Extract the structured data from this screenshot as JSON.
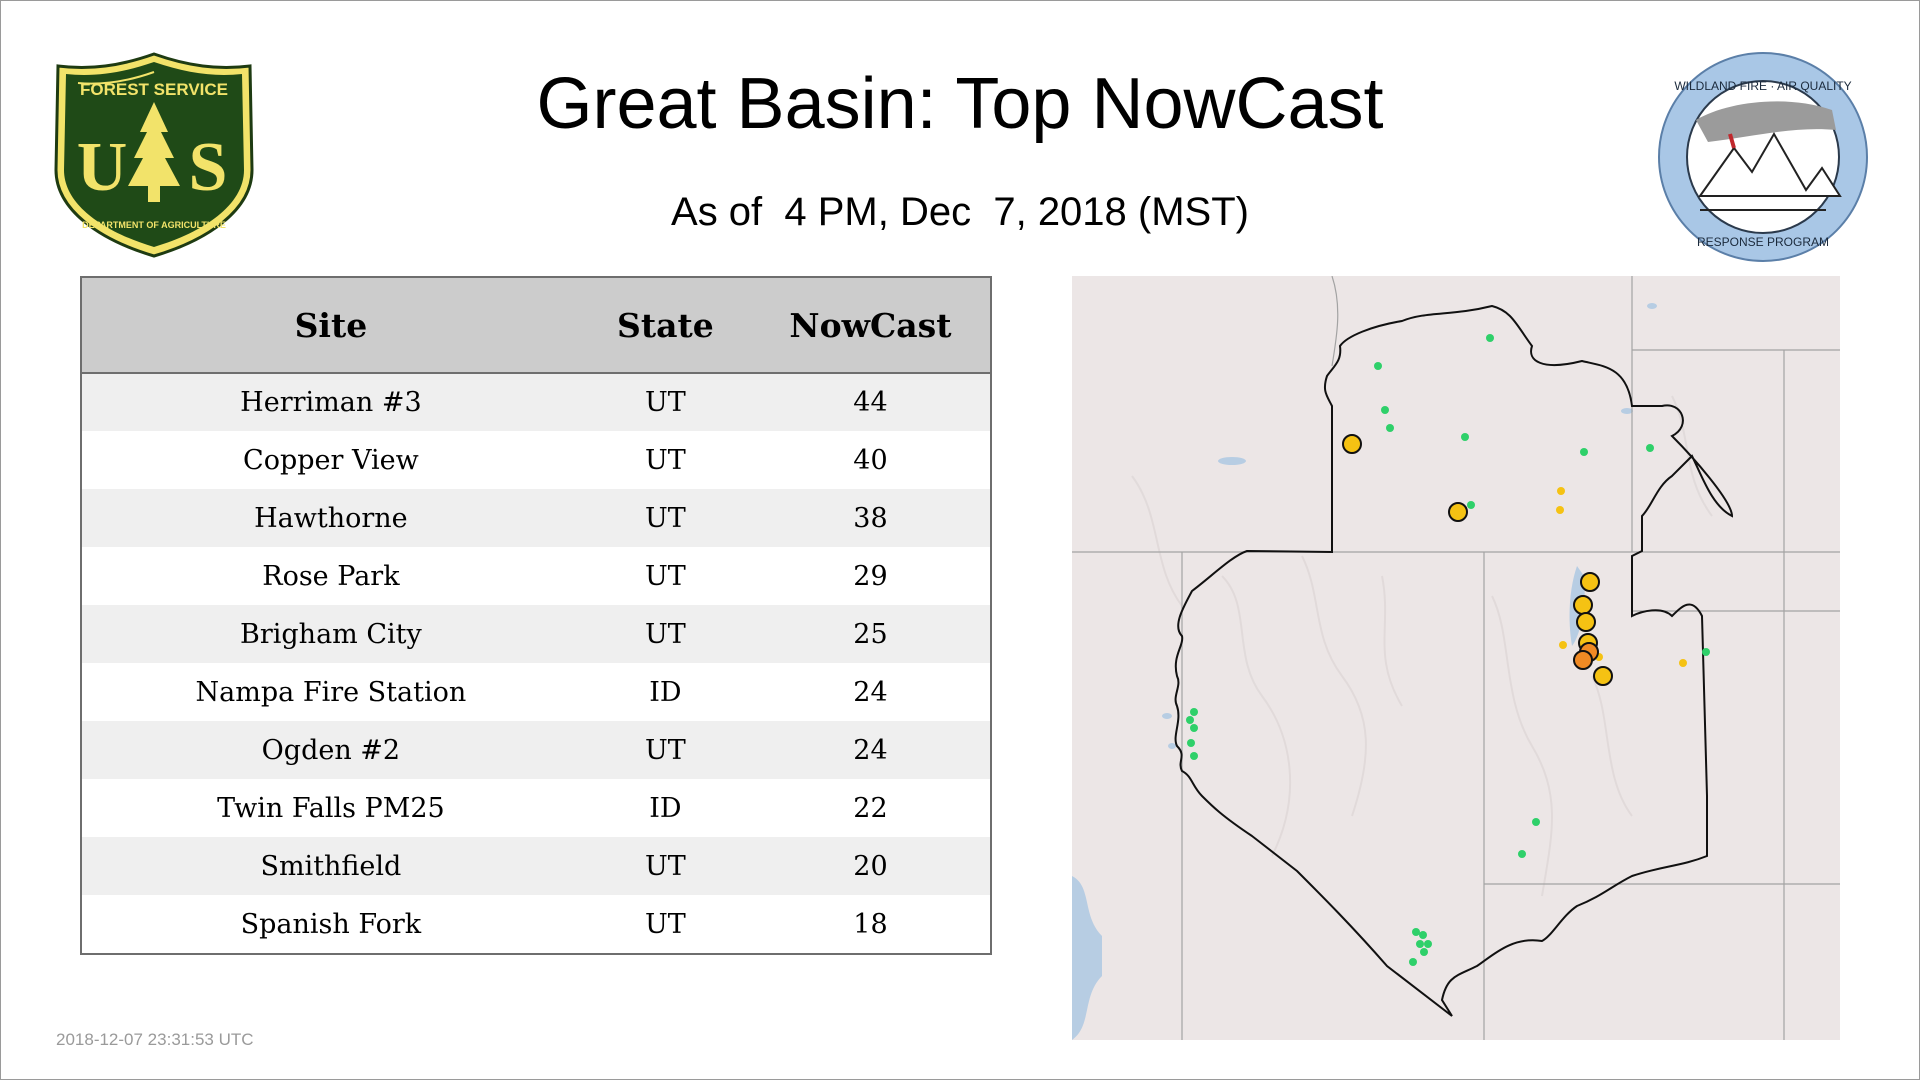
{
  "header": {
    "title": "Great Basin: Top NowCast",
    "subtitle": "As of  4 PM, Dec  7, 2018 (MST)"
  },
  "logos": {
    "forest_service": {
      "top_text": "FOREST SERVICE",
      "bottom_text": "DEPARTMENT OF AGRICULTURE",
      "letters": "U S"
    },
    "wildland_fire": {
      "top_text": "WILDLAND FIRE · AIR QUALITY",
      "bottom_text": "RESPONSE PROGRAM"
    }
  },
  "table": {
    "columns": [
      "Site",
      "State",
      "NowCast"
    ],
    "rows": [
      {
        "site": "Herriman #3",
        "state": "UT",
        "nowcast": "44"
      },
      {
        "site": "Copper View",
        "state": "UT",
        "nowcast": "40"
      },
      {
        "site": "Hawthorne",
        "state": "UT",
        "nowcast": "38"
      },
      {
        "site": "Rose Park",
        "state": "UT",
        "nowcast": "29"
      },
      {
        "site": "Brigham City",
        "state": "UT",
        "nowcast": "25"
      },
      {
        "site": "Nampa Fire Station",
        "state": "ID",
        "nowcast": "24"
      },
      {
        "site": "Ogden #2",
        "state": "UT",
        "nowcast": "24"
      },
      {
        "site": "Twin Falls PM25",
        "state": "ID",
        "nowcast": "22"
      },
      {
        "site": "Smithfield",
        "state": "UT",
        "nowcast": "20"
      },
      {
        "site": "Spanish Fork",
        "state": "UT",
        "nowcast": "18"
      }
    ]
  },
  "map": {
    "colors": {
      "land": "#ece6e6",
      "water": "#b7cde3",
      "good": "#2fd06a",
      "moderate": "#f5c213",
      "usg": "#f08a24",
      "outline": "#111111"
    }
  },
  "footer": {
    "timestamp": "2018-12-07 23:31:53 UTC"
  },
  "colors": {
    "header_bg": "#cccccc",
    "row_alt": "#efefef",
    "border": "#6e6e6e",
    "timestamp": "#9a9a9a"
  }
}
